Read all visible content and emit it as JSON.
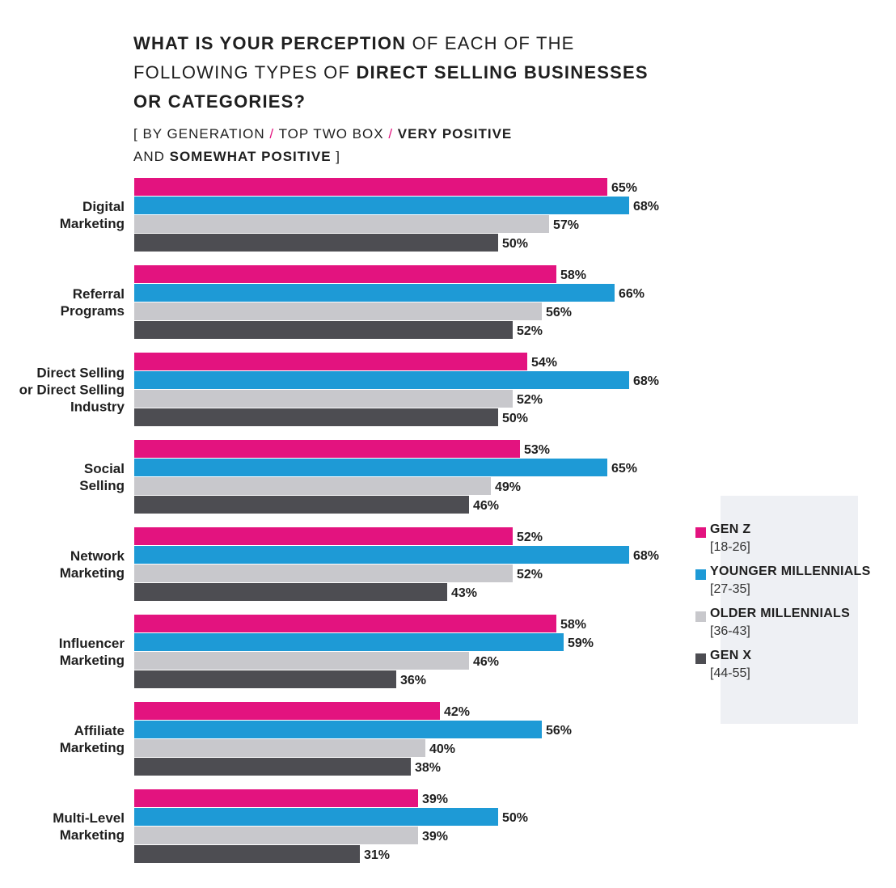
{
  "title": {
    "part1": "What is your perception",
    "part2": " of each of the following types of ",
    "part3": "direct selling businesses or categories?"
  },
  "subtitle": {
    "open": "[ ",
    "part1": "By generation",
    "slash1": " / ",
    "part2": "Top two box",
    "slash2": " / ",
    "part3": "Very positive",
    "part4": " and ",
    "part5": "somewhat positive",
    "close": " ]"
  },
  "colors": {
    "gen_z": "#e3137f",
    "younger_millennials": "#1e9ad6",
    "older_millennials": "#c8c8cc",
    "gen_x": "#4d4d52"
  },
  "legend": [
    {
      "name": "GEN Z",
      "range": "[18-26]",
      "color_key": "gen_z"
    },
    {
      "name": "YOUNGER MILLENNIALS",
      "range": "[27-35]",
      "color_key": "younger_millennials"
    },
    {
      "name": "OLDER MILLENNIALS",
      "range": "[36-43]",
      "color_key": "older_millennials"
    },
    {
      "name": "GEN X",
      "range": "[44-55]",
      "color_key": "gen_x"
    }
  ],
  "chart_data": {
    "type": "bar",
    "orientation": "horizontal",
    "categories": [
      "Digital\nMarketing",
      "Referral\nPrograms",
      "Direct Selling\nor Direct Selling\nIndustry",
      "Social\nSelling",
      "Network\nMarketing",
      "Influencer\nMarketing",
      "Affiliate\nMarketing",
      "Multi-Level\nMarketing"
    ],
    "series": [
      {
        "name": "GEN Z",
        "color_key": "gen_z",
        "values": [
          65,
          58,
          54,
          53,
          52,
          58,
          42,
          39
        ]
      },
      {
        "name": "YOUNGER MILLENNIALS",
        "color_key": "younger_millennials",
        "values": [
          68,
          66,
          68,
          65,
          68,
          59,
          56,
          50
        ]
      },
      {
        "name": "OLDER MILLENNIALS",
        "color_key": "older_millennials",
        "values": [
          57,
          56,
          52,
          49,
          52,
          46,
          40,
          39
        ]
      },
      {
        "name": "GEN X",
        "color_key": "gen_x",
        "values": [
          50,
          52,
          50,
          46,
          43,
          36,
          38,
          31
        ]
      }
    ],
    "value_suffix": "%",
    "xlim": [
      0,
      100
    ],
    "grid": false,
    "legend_position": "right"
  }
}
